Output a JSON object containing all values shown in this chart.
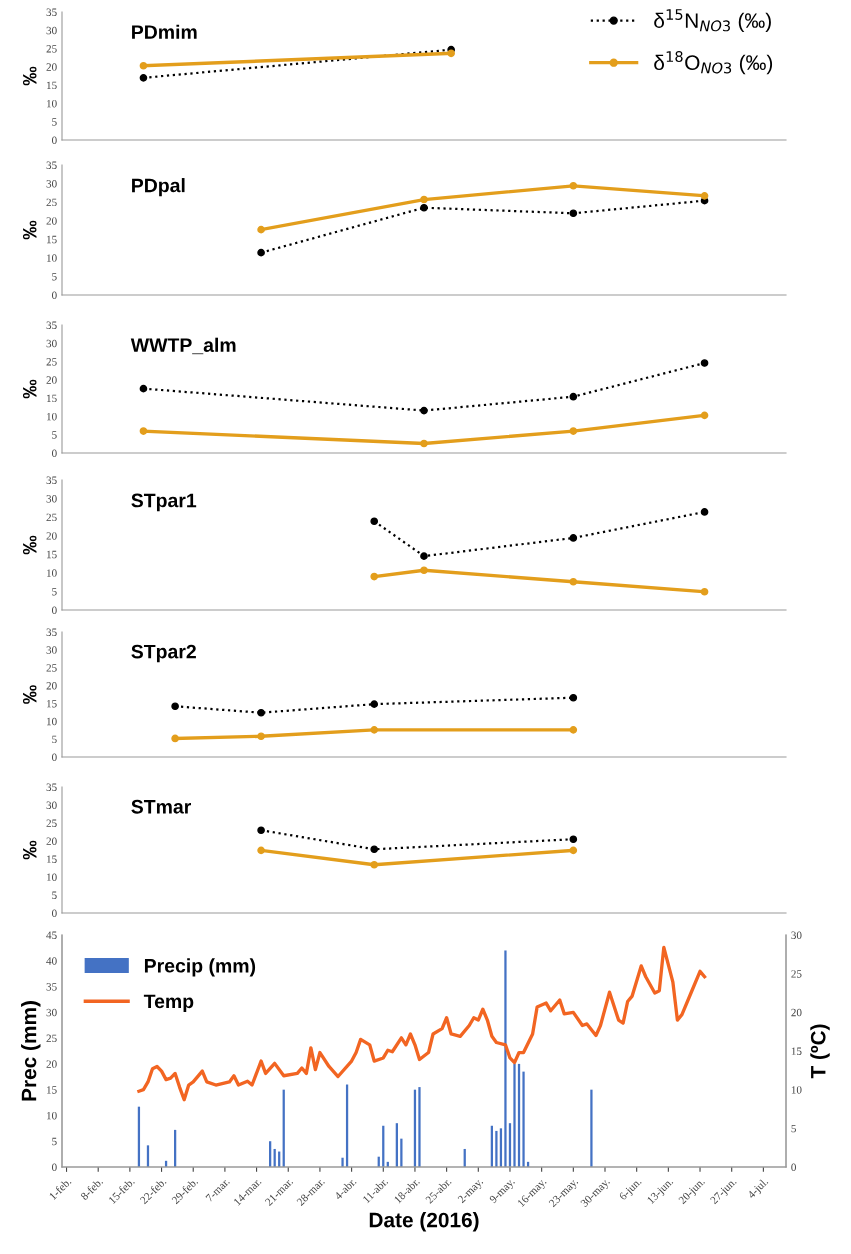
{
  "chart_data": [
    {
      "type": "line",
      "title": "PDmim",
      "ylabel": "‰",
      "xlim": [
        "2016-01-31",
        "2016-07-09"
      ],
      "ylim": [
        0,
        35
      ],
      "yticks": [
        0,
        5,
        10,
        15,
        20,
        25,
        30,
        35
      ],
      "tick_labels": "y",
      "legend": "top right",
      "series": [
        {
          "name": "δ$^{15}$N$_{NO3}$ (‰)",
          "color": "#000000",
          "marker": "circle",
          "line_style": "dotted",
          "x": [
            "2016-02-18",
            "2016-04-26"
          ],
          "values": [
            17,
            24.7
          ]
        },
        {
          "name": "δ$^{18}$O$_{NO3}$ (‰)",
          "color": "#e39e1c",
          "marker": "circle",
          "line_style": "solid",
          "x": [
            "2016-02-18",
            "2016-04-26"
          ],
          "values": [
            20.3,
            23.7
          ]
        }
      ]
    },
    {
      "type": "line",
      "title": "PDpal",
      "ylabel": "‰",
      "xlim": [
        "2016-01-31",
        "2016-07-09"
      ],
      "ylim": [
        0,
        35
      ],
      "yticks": [
        0,
        5,
        10,
        15,
        20,
        25,
        30,
        35
      ],
      "tick_labels": "y",
      "series": [
        {
          "color": "#000000",
          "marker": "circle",
          "line_style": "dotted",
          "x": [
            "2016-03-15",
            "2016-04-20",
            "2016-05-23",
            "2016-06-21"
          ],
          "values": [
            11.4,
            23.5,
            22,
            25.4
          ]
        },
        {
          "color": "#e39e1c",
          "marker": "circle",
          "line_style": "solid",
          "x": [
            "2016-03-15",
            "2016-04-20",
            "2016-05-23",
            "2016-06-21"
          ],
          "values": [
            17.6,
            25.7,
            29.4,
            26.7
          ]
        }
      ]
    },
    {
      "type": "line",
      "title": "WWTP_alm",
      "ylabel": "‰",
      "xlim": [
        "2016-01-31",
        "2016-07-09"
      ],
      "ylim": [
        0,
        35
      ],
      "yticks": [
        0,
        5,
        10,
        15,
        20,
        25,
        30,
        35
      ],
      "tick_labels": "y",
      "series": [
        {
          "color": "#000000",
          "marker": "circle",
          "line_style": "dotted",
          "x": [
            "2016-02-18",
            "2016-04-20",
            "2016-05-23",
            "2016-06-21"
          ],
          "values": [
            17.6,
            11.6,
            15.4,
            24.6
          ]
        },
        {
          "color": "#e39e1c",
          "marker": "circle",
          "line_style": "solid",
          "x": [
            "2016-02-18",
            "2016-04-20",
            "2016-05-23",
            "2016-06-21"
          ],
          "values": [
            6,
            2.6,
            6,
            10.3
          ]
        }
      ]
    },
    {
      "type": "line",
      "title": "STpar1",
      "ylabel": "‰",
      "xlim": [
        "2016-01-31",
        "2016-07-09"
      ],
      "ylim": [
        0,
        35
      ],
      "yticks": [
        0,
        5,
        10,
        15,
        20,
        25,
        30,
        35
      ],
      "tick_labels": "y",
      "series": [
        {
          "color": "#000000",
          "marker": "circle",
          "line_style": "dotted",
          "x": [
            "2016-04-09",
            "2016-04-20",
            "2016-05-23",
            "2016-06-21"
          ],
          "values": [
            23.9,
            14.5,
            19.4,
            26.4
          ]
        },
        {
          "color": "#e39e1c",
          "marker": "circle",
          "line_style": "solid",
          "x": [
            "2016-04-09",
            "2016-04-20",
            "2016-05-23",
            "2016-06-21"
          ],
          "values": [
            9,
            10.7,
            7.6,
            4.9
          ]
        }
      ]
    },
    {
      "type": "line",
      "title": "STpar2",
      "ylabel": "‰",
      "xlim": [
        "2016-01-31",
        "2016-07-09"
      ],
      "ylim": [
        0,
        35
      ],
      "yticks": [
        0,
        5,
        10,
        15,
        20,
        25,
        30,
        35
      ],
      "tick_labels": "y",
      "series": [
        {
          "color": "#000000",
          "marker": "circle",
          "line_style": "dotted",
          "x": [
            "2016-02-25",
            "2016-03-15",
            "2016-04-09",
            "2016-05-23"
          ],
          "values": [
            14.2,
            12.4,
            14.8,
            16.6
          ]
        },
        {
          "color": "#e39e1c",
          "marker": "circle",
          "line_style": "solid",
          "x": [
            "2016-02-25",
            "2016-03-15",
            "2016-04-09",
            "2016-05-23"
          ],
          "values": [
            5.2,
            5.8,
            7.6,
            7.6
          ]
        }
      ]
    },
    {
      "type": "line",
      "title": "STmar",
      "ylabel": "‰",
      "xlim": [
        "2016-01-31",
        "2016-07-09"
      ],
      "ylim": [
        0,
        35
      ],
      "yticks": [
        0,
        5,
        10,
        15,
        20,
        25,
        30,
        35
      ],
      "tick_labels": "y",
      "series": [
        {
          "color": "#000000",
          "marker": "circle",
          "line_style": "dotted",
          "x": [
            "2016-03-15",
            "2016-04-09",
            "2016-05-23"
          ],
          "values": [
            23,
            17.7,
            20.5
          ]
        },
        {
          "color": "#e39e1c",
          "marker": "circle",
          "line_style": "solid",
          "x": [
            "2016-03-15",
            "2016-04-09",
            "2016-05-23"
          ],
          "values": [
            17.4,
            13.4,
            17.4
          ]
        }
      ]
    },
    {
      "type": "bar",
      "xlabel": "Date (2016)",
      "ylabel": "Prec (mm)",
      "y2label": "T (ºC)",
      "xlim": [
        "2016-01-31",
        "2016-07-09"
      ],
      "ylim": [
        0,
        45
      ],
      "yticks": [
        0,
        5,
        10,
        15,
        20,
        25,
        30,
        35,
        40,
        45
      ],
      "y2lim": [
        0,
        30
      ],
      "y2ticks": [
        0,
        5,
        10,
        15,
        20,
        25,
        30
      ],
      "legend": "top left",
      "xticks": [
        {
          "value": "2016-02-01",
          "label": "1-feb."
        },
        {
          "value": "2016-02-08",
          "label": "8-feb."
        },
        {
          "value": "2016-02-15",
          "label": "15-feb."
        },
        {
          "value": "2016-02-22",
          "label": "22-feb."
        },
        {
          "value": "2016-02-29",
          "label": "29-feb."
        },
        {
          "value": "2016-03-07",
          "label": "7-mar."
        },
        {
          "value": "2016-03-14",
          "label": "14-mar."
        },
        {
          "value": "2016-03-21",
          "label": "21-mar."
        },
        {
          "value": "2016-03-28",
          "label": "28-mar."
        },
        {
          "value": "2016-04-04",
          "label": "4-abr."
        },
        {
          "value": "2016-04-11",
          "label": "11-abr."
        },
        {
          "value": "2016-04-18",
          "label": "18-abr."
        },
        {
          "value": "2016-04-25",
          "label": "25-abr."
        },
        {
          "value": "2016-05-02",
          "label": "2-may."
        },
        {
          "value": "2016-05-09",
          "label": "9-may."
        },
        {
          "value": "2016-05-16",
          "label": "16-may."
        },
        {
          "value": "2016-05-23",
          "label": "23-may."
        },
        {
          "value": "2016-05-30",
          "label": "30-may."
        },
        {
          "value": "2016-06-06",
          "label": "6-jun."
        },
        {
          "value": "2016-06-13",
          "label": "13-jun."
        },
        {
          "value": "2016-06-20",
          "label": "20-jun."
        },
        {
          "value": "2016-06-27",
          "label": "27-jun."
        },
        {
          "value": "2016-07-04",
          "label": "4-jul."
        }
      ],
      "series": [
        {
          "name": "Precip (mm)",
          "type": "bar",
          "color": "#4472c4",
          "x": [
            "2016-02-17",
            "2016-02-19",
            "2016-02-23",
            "2016-02-25",
            "2016-03-17",
            "2016-03-18",
            "2016-03-19",
            "2016-03-20",
            "2016-04-02",
            "2016-04-03",
            "2016-04-10",
            "2016-04-11",
            "2016-04-12",
            "2016-04-14",
            "2016-04-15",
            "2016-04-18",
            "2016-04-19",
            "2016-04-29",
            "2016-05-05",
            "2016-05-06",
            "2016-05-07",
            "2016-05-08",
            "2016-05-09",
            "2016-05-10",
            "2016-05-11",
            "2016-05-12",
            "2016-05-13",
            "2016-05-27"
          ],
          "values": [
            11.7,
            4.2,
            1.2,
            7.2,
            5,
            3.5,
            3,
            15,
            1.8,
            16,
            2,
            8,
            1,
            8.5,
            5.5,
            15,
            15.5,
            3.5,
            8,
            7,
            7.5,
            42,
            8.5,
            20,
            20,
            18.5,
            1,
            15
          ]
        },
        {
          "name": "Temp",
          "type": "line",
          "axis": "y2",
          "color": "#f26522",
          "marker": "none",
          "line_style": "solid",
          "x": [
            "2016-02-17",
            "2016-02-18",
            "2016-02-19",
            "2016-02-20",
            "2016-02-21",
            "2016-02-22",
            "2016-02-23",
            "2016-02-24",
            "2016-02-25",
            "2016-02-26",
            "2016-02-27",
            "2016-02-28",
            "2016-02-29",
            "2016-03-02",
            "2016-03-03",
            "2016-03-05",
            "2016-03-08",
            "2016-03-09",
            "2016-03-10",
            "2016-03-12",
            "2016-03-13",
            "2016-03-15",
            "2016-03-16",
            "2016-03-18",
            "2016-03-20",
            "2016-03-23",
            "2016-03-24",
            "2016-03-25",
            "2016-03-26",
            "2016-03-27",
            "2016-03-28",
            "2016-03-30",
            "2016-04-01",
            "2016-04-04",
            "2016-04-05",
            "2016-04-06",
            "2016-04-08",
            "2016-04-09",
            "2016-04-11",
            "2016-04-12",
            "2016-04-13",
            "2016-04-15",
            "2016-04-16",
            "2016-04-17",
            "2016-04-18",
            "2016-04-19",
            "2016-04-21",
            "2016-04-22",
            "2016-04-24",
            "2016-04-25",
            "2016-04-26",
            "2016-04-28",
            "2016-04-30",
            "2016-05-01",
            "2016-05-02",
            "2016-05-03",
            "2016-05-04",
            "2016-05-05",
            "2016-05-06",
            "2016-05-08",
            "2016-05-09",
            "2016-05-10",
            "2016-05-11",
            "2016-05-12",
            "2016-05-14",
            "2016-05-15",
            "2016-05-17",
            "2016-05-18",
            "2016-05-20",
            "2016-05-21",
            "2016-05-23",
            "2016-05-25",
            "2016-05-26",
            "2016-05-28",
            "2016-05-29",
            "2016-05-31",
            "2016-06-02",
            "2016-06-03",
            "2016-06-04",
            "2016-06-05",
            "2016-06-07",
            "2016-06-08",
            "2016-06-10",
            "2016-06-11",
            "2016-06-12",
            "2016-06-14",
            "2016-06-15",
            "2016-06-16",
            "2016-06-18",
            "2016-06-20",
            "2016-06-21"
          ],
          "values": [
            9.8,
            10.0,
            11.0,
            12.7,
            13.0,
            12.4,
            11.3,
            11.5,
            12.1,
            10.3,
            8.7,
            10.6,
            11.0,
            12.4,
            11.0,
            10.6,
            11.0,
            11.8,
            10.6,
            11.1,
            10.6,
            13.7,
            12.1,
            13.4,
            11.8,
            12.1,
            12.8,
            12.1,
            15.4,
            12.6,
            14.8,
            13.0,
            11.7,
            13.7,
            14.8,
            16.5,
            15.8,
            13.7,
            14.1,
            15.1,
            14.9,
            16.7,
            15.8,
            17.2,
            15.8,
            13.9,
            14.8,
            17.2,
            17.9,
            19.3,
            17.2,
            16.9,
            18.3,
            19.3,
            19.0,
            20.4,
            19.0,
            16.9,
            16.1,
            15.8,
            14.1,
            13.5,
            14.8,
            14.8,
            17.2,
            20.7,
            21.2,
            20.2,
            21.6,
            19.8,
            20.0,
            18.3,
            18.5,
            17.0,
            18.3,
            22.6,
            19.0,
            18.6,
            21.4,
            22.1,
            26.0,
            24.6,
            22.5,
            22.8,
            28.4,
            23.9,
            19.0,
            19.7,
            22.5,
            25.3,
            24.6
          ]
        }
      ]
    }
  ]
}
